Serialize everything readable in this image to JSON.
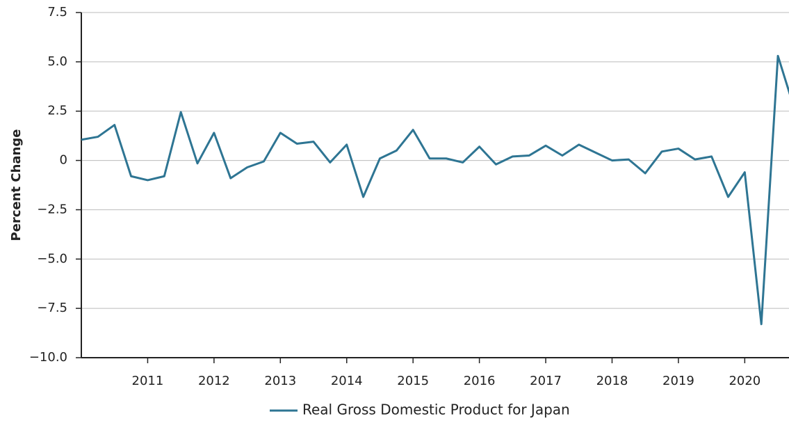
{
  "chart_data": {
    "type": "line",
    "y_label": "Percent Change",
    "x": [
      2010,
      2010.25,
      2010.5,
      2010.75,
      2011,
      2011.25,
      2011.5,
      2011.75,
      2012,
      2012.25,
      2012.5,
      2012.75,
      2013,
      2013.25,
      2013.5,
      2013.75,
      2014,
      2014.25,
      2014.5,
      2014.75,
      2015,
      2015.25,
      2015.5,
      2015.75,
      2016,
      2016.25,
      2016.5,
      2016.75,
      2017,
      2017.25,
      2017.5,
      2017.75,
      2018,
      2018.25,
      2018.5,
      2018.75,
      2019,
      2019.25,
      2019.5,
      2019.75,
      2020,
      2020.25,
      2020.5,
      2020.75
    ],
    "series": [
      {
        "name": "Real Gross Domestic Product for Japan",
        "color": "#2e7593",
        "values": [
          1.05,
          1.2,
          1.8,
          -0.8,
          -1.0,
          -0.8,
          2.45,
          -0.15,
          1.4,
          -0.9,
          -0.35,
          -0.05,
          1.4,
          0.85,
          0.95,
          -0.1,
          0.8,
          -1.85,
          0.1,
          0.5,
          1.55,
          0.1,
          0.1,
          -0.1,
          0.7,
          -0.2,
          0.2,
          0.25,
          0.75,
          0.25,
          0.8,
          0.4,
          0,
          0.05,
          -0.65,
          0.45,
          0.6,
          0.05,
          0.2,
          -1.85,
          -0.6,
          -8.3,
          5.3,
          2.6
        ]
      }
    ],
    "xlim": [
      2010,
      2020.667
    ],
    "xticks": [
      2011,
      2012,
      2013,
      2014,
      2015,
      2016,
      2017,
      2018,
      2019,
      2020
    ],
    "ylim": [
      -10,
      7.5
    ],
    "yticks": [
      {
        "value": -10,
        "label": "−10.0"
      },
      {
        "value": -7.5,
        "label": "−7.5"
      },
      {
        "value": -5,
        "label": "−5.0"
      },
      {
        "value": -2.5,
        "label": "−2.5"
      },
      0,
      {
        "value": 2.5,
        "label": "2.5"
      },
      {
        "value": 5,
        "label": "5.0"
      },
      {
        "value": 7.5,
        "label": "7.5"
      }
    ],
    "grid": true,
    "legend": "bottom"
  }
}
